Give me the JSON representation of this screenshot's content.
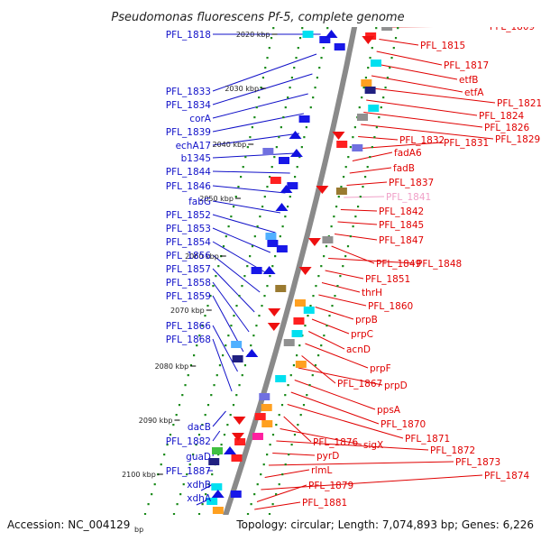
{
  "title": "Pseudomonas fluorescens Pf-5, complete genome",
  "footer": {
    "accession": "Accession: NC_004129",
    "bp_unit": "bp",
    "summary": "Topology: circular; Length: 7,074,893 bp; Genes: 6,226"
  },
  "colors": {
    "left_label": "#1010c8",
    "right_label": "#e00000",
    "pink_label": "#f0a0c8",
    "backbone": "#8a8a8a",
    "dots": "#1a8a1a"
  },
  "scale_ticks": [
    "2020 kbp",
    "2030 kbp",
    "2040 kbp",
    "2050 kbp",
    "2060 kbp",
    "2070 kbp",
    "2080 kbp",
    "2090 kbp",
    "2100 kbp"
  ],
  "left_genes": [
    "PFL_1818",
    "PFL_1833",
    "PFL_1834",
    "corA",
    "PFL_1839",
    "echA17",
    "b1345",
    "PFL_1844",
    "PFL_1846",
    "fabG",
    "PFL_1852",
    "PFL_1853",
    "PFL_1854",
    "PFL_1856",
    "PFL_1857",
    "PFL_1858",
    "PFL_1859",
    "PFL_1866",
    "PFL_1868",
    "dacB",
    "PFL_1882",
    "guaD",
    "PFL_1887",
    "xdhB",
    "xdhA"
  ],
  "right_genes": [
    "PFL_1809",
    "PFL_1815",
    "PFL_1817",
    "etfB",
    "etfA",
    "PFL_1821",
    "PFL_1824",
    "PFL_1826",
    "PFL_1829",
    "PFL_1832",
    "PFL_1831",
    "fadA6",
    "fadB",
    "PFL_1837",
    "PFL_1841",
    "PFL_1842",
    "PFL_1845",
    "PFL_1847",
    "PFL_1849",
    "PFL_1848",
    "PFL_1851",
    "thrH",
    "PFL_1860",
    "prpB",
    "prpC",
    "acnD",
    "prpF",
    "PFL_1867",
    "prpD",
    "ppsA",
    "PFL_1870",
    "PFL_1871",
    "PFL_1876",
    "sigX",
    "PFL_1872",
    "pyrD",
    "PFL_1873",
    "rlmL",
    "PFL_1874",
    "PFL_1879",
    "PFL_1881"
  ]
}
